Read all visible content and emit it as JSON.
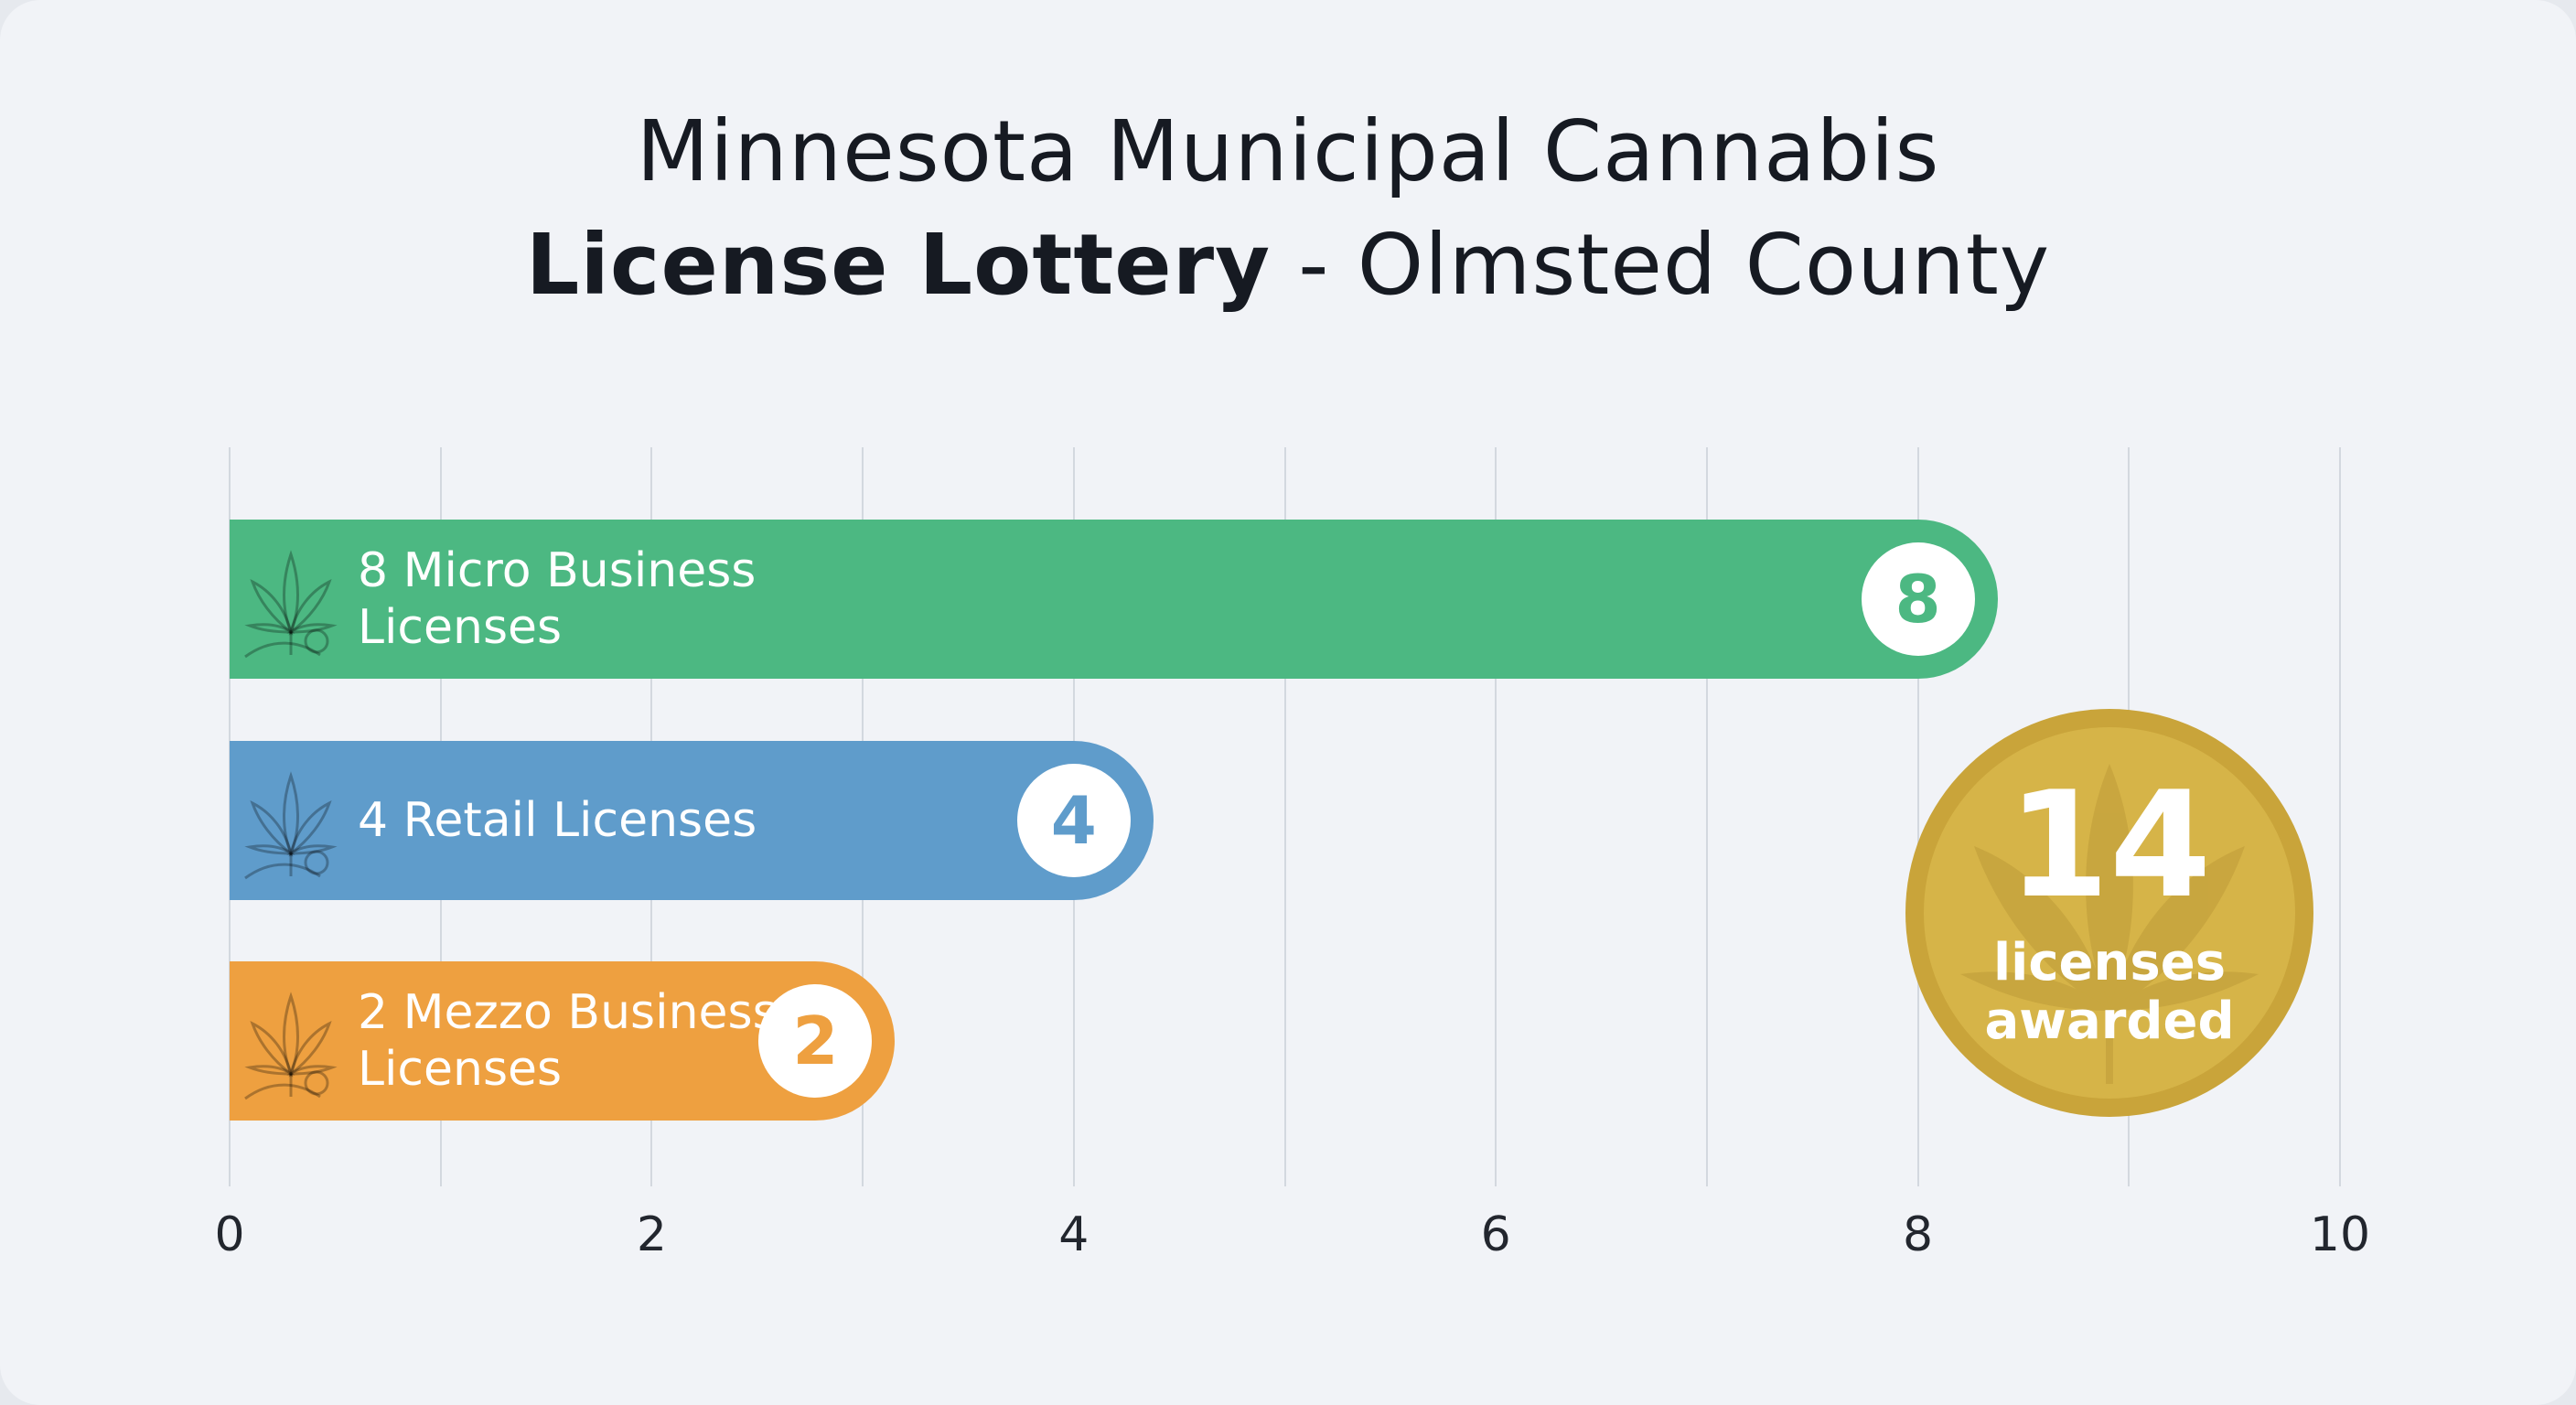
{
  "chart_data": {
    "type": "bar",
    "orientation": "horizontal",
    "title_line1": "Minnesota Municipal Cannabis",
    "title_line2_bold": "License Lottery",
    "title_line2_rest": " - Olmsted County",
    "categories": [
      "8 Micro Business Licenses",
      "4 Retail Licenses",
      "2 Mezzo Business Licenses"
    ],
    "values": [
      8,
      4,
      2
    ],
    "value_labels": [
      "8",
      "4",
      "2"
    ],
    "colors": [
      "#4cb882",
      "#5f9ccb",
      "#eea040"
    ],
    "xlim": [
      0,
      10
    ],
    "x_ticks": [
      "0",
      "2",
      "4",
      "6",
      "8",
      "10"
    ],
    "grid": true,
    "grid_step": 1,
    "icon": "cannabis-leaf-icon",
    "total_badge": {
      "value": "14",
      "line1": "licenses",
      "line2": "awarded",
      "color": "#d2b046"
    }
  }
}
